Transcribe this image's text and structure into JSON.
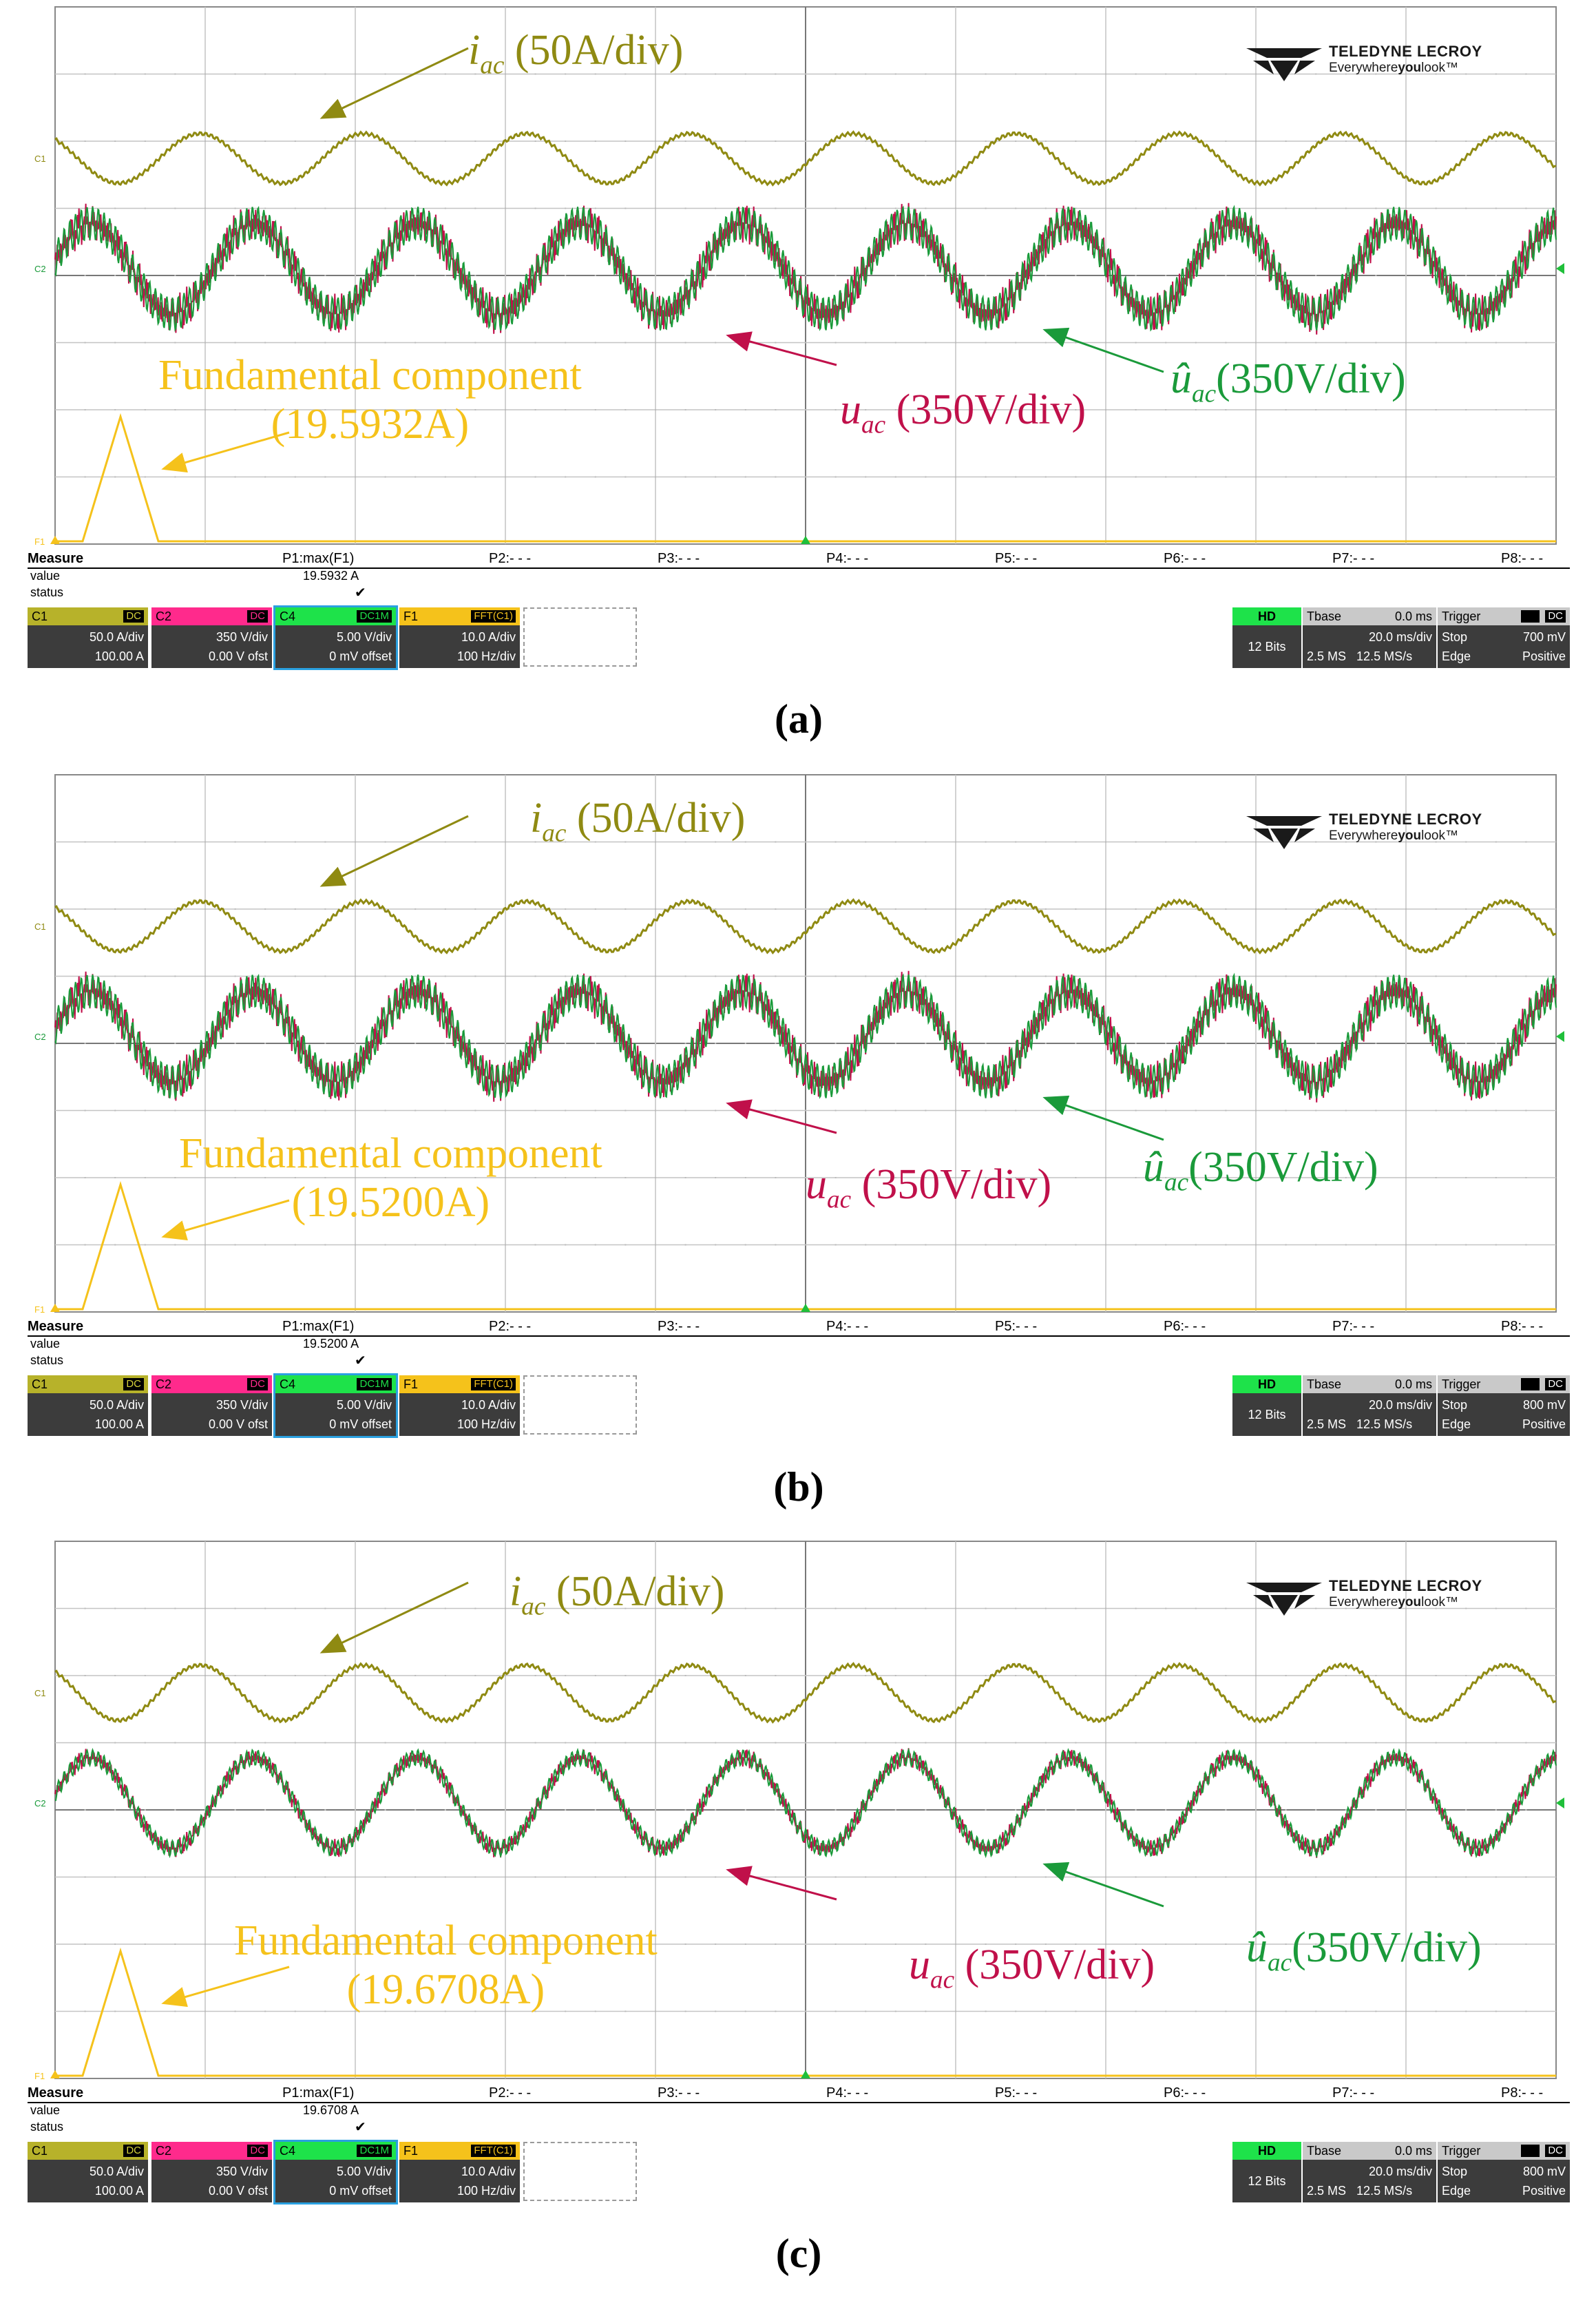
{
  "branding": {
    "line1": "TELEDYNE LECROY",
    "line2_pre": "Everywhere",
    "line2_bold": "you",
    "line2_post": "look"
  },
  "colors": {
    "i_ac": "#8f8a12",
    "u_ac": "#c0104a",
    "u_hat": "#1a9a3a",
    "fft": "#f5c21b",
    "grid": "#9a9a9a"
  },
  "panels": [
    {
      "caption": "(a)",
      "annotations": {
        "i_ac_label": "i",
        "i_ac_sub": "ac",
        "i_ac_scale": " (50A/div)",
        "u_ac_label": "u",
        "u_ac_sub": "ac",
        "u_ac_scale": " (350V/div)",
        "u_hat_label": "û",
        "u_hat_sub": "ac",
        "u_hat_scale": "(350V/div)",
        "fund_label": "Fundamental component",
        "fund_value": "(19.5932A)"
      },
      "measure": {
        "title": "Measure",
        "row_value": "value",
        "row_status": "status",
        "params": [
          "P1:max(F1)",
          "P2:- - -",
          "P3:- - -",
          "P4:- - -",
          "P5:- - -",
          "P6:- - -",
          "P7:- - -",
          "P8:- - -"
        ],
        "p1_value": "19.5932 A",
        "p1_status": "✔"
      },
      "channels": [
        {
          "name": "C1",
          "tag": "DC",
          "line1": "50.0 A/div",
          "line2": "100.00 A"
        },
        {
          "name": "C2",
          "tag": "DC",
          "line1": "350 V/div",
          "line2": "0.00 V ofst"
        },
        {
          "name": "C4",
          "tag": "DC1M",
          "line1": "5.00 V/div",
          "line2": "0 mV offset"
        },
        {
          "name": "F1",
          "tag": "FFT(C1)",
          "line1": "10.0 A/div",
          "line2": "100 Hz/div"
        }
      ],
      "timebase": {
        "hd": "HD",
        "bits": "12 Bits",
        "tbase_label": "Tbase",
        "tbase_offset": "0.0 ms",
        "tdiv": "20.0 ms/div",
        "samples": "2.5 MS",
        "rate": "12.5 MS/s"
      },
      "trigger": {
        "label": "Trigger",
        "tag1": "C4",
        "tag2": "DC",
        "mode": "Stop",
        "level": "700 mV",
        "type": "Edge",
        "slope": "Positive"
      }
    },
    {
      "caption": "(b)",
      "annotations": {
        "i_ac_label": "i",
        "i_ac_sub": "ac",
        "i_ac_scale": " (50A/div)",
        "u_ac_label": "u",
        "u_ac_sub": "ac",
        "u_ac_scale": " (350V/div)",
        "u_hat_label": "û",
        "u_hat_sub": "ac",
        "u_hat_scale": "(350V/div)",
        "fund_label": "Fundamental component",
        "fund_value": "(19.5200A)"
      },
      "measure": {
        "title": "Measure",
        "row_value": "value",
        "row_status": "status",
        "params": [
          "P1:max(F1)",
          "P2:- - -",
          "P3:- - -",
          "P4:- - -",
          "P5:- - -",
          "P6:- - -",
          "P7:- - -",
          "P8:- - -"
        ],
        "p1_value": "19.5200 A",
        "p1_status": "✔"
      },
      "channels": [
        {
          "name": "C1",
          "tag": "DC",
          "line1": "50.0 A/div",
          "line2": "100.00 A"
        },
        {
          "name": "C2",
          "tag": "DC",
          "line1": "350 V/div",
          "line2": "0.00 V ofst"
        },
        {
          "name": "C4",
          "tag": "DC1M",
          "line1": "5.00 V/div",
          "line2": "0 mV offset"
        },
        {
          "name": "F1",
          "tag": "FFT(C1)",
          "line1": "10.0 A/div",
          "line2": "100 Hz/div"
        }
      ],
      "timebase": {
        "hd": "HD",
        "bits": "12 Bits",
        "tbase_label": "Tbase",
        "tbase_offset": "0.0 ms",
        "tdiv": "20.0 ms/div",
        "samples": "2.5 MS",
        "rate": "12.5 MS/s"
      },
      "trigger": {
        "label": "Trigger",
        "tag1": "C4",
        "tag2": "DC",
        "mode": "Stop",
        "level": "800 mV",
        "type": "Edge",
        "slope": "Positive"
      }
    },
    {
      "caption": "(c)",
      "annotations": {
        "i_ac_label": "i",
        "i_ac_sub": "ac",
        "i_ac_scale": " (50A/div)",
        "u_ac_label": "u",
        "u_ac_sub": "ac",
        "u_ac_scale": " (350V/div)",
        "u_hat_label": "û",
        "u_hat_sub": "ac",
        "u_hat_scale": "(350V/div)",
        "fund_label": "Fundamental component",
        "fund_value": "(19.6708A)"
      },
      "measure": {
        "title": "Measure",
        "row_value": "value",
        "row_status": "status",
        "params": [
          "P1:max(F1)",
          "P2:- - -",
          "P3:- - -",
          "P4:- - -",
          "P5:- - -",
          "P6:- - -",
          "P7:- - -",
          "P8:- - -"
        ],
        "p1_value": "19.6708 A",
        "p1_status": "✔"
      },
      "channels": [
        {
          "name": "C1",
          "tag": "DC",
          "line1": "50.0 A/div",
          "line2": "100.00 A"
        },
        {
          "name": "C2",
          "tag": "DC",
          "line1": "350 V/div",
          "line2": "0.00 V ofst"
        },
        {
          "name": "C4",
          "tag": "DC1M",
          "line1": "5.00 V/div",
          "line2": "0 mV offset"
        },
        {
          "name": "F1",
          "tag": "FFT(C1)",
          "line1": "10.0 A/div",
          "line2": "100 Hz/div"
        }
      ],
      "timebase": {
        "hd": "HD",
        "bits": "12 Bits",
        "tbase_label": "Tbase",
        "tbase_offset": "0.0 ms",
        "tdiv": "20.0 ms/div",
        "samples": "2.5 MS",
        "rate": "12.5 MS/s"
      },
      "trigger": {
        "label": "Trigger",
        "tag1": "C4",
        "tag2": "DC",
        "mode": "Stop",
        "level": "800 mV",
        "type": "Edge",
        "slope": "Positive"
      }
    }
  ]
}
